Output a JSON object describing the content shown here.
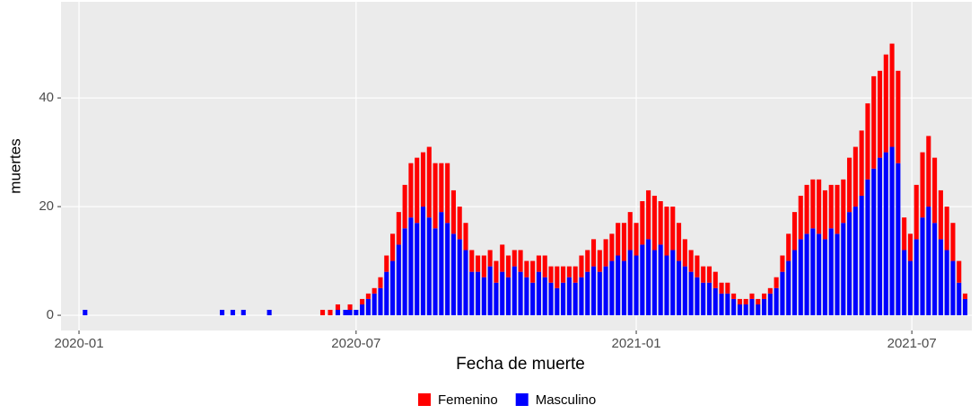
{
  "chart_data": {
    "type": "stacked_bar",
    "x_label": "Fecha de muerte",
    "y_label": "muertes",
    "x": [
      4,
      94,
      101,
      108,
      125,
      160,
      165,
      170,
      175,
      178,
      182,
      186,
      190,
      194,
      198,
      202,
      206,
      210,
      214,
      218,
      222,
      226,
      230,
      234,
      238,
      242,
      246,
      250,
      254,
      258,
      262,
      266,
      270,
      274,
      278,
      282,
      286,
      290,
      294,
      298,
      302,
      306,
      310,
      314,
      318,
      322,
      326,
      330,
      334,
      338,
      342,
      346,
      350,
      354,
      358,
      362,
      366,
      370,
      374,
      378,
      382,
      386,
      390,
      394,
      398,
      402,
      406,
      410,
      414,
      418,
      422,
      426,
      430,
      434,
      438,
      442,
      446,
      450,
      454,
      458,
      462,
      466,
      470,
      474,
      478,
      482,
      486,
      490,
      494,
      498,
      502,
      506,
      510,
      514,
      518,
      522,
      526,
      530,
      534,
      538,
      542,
      546,
      550,
      554,
      558,
      562,
      566,
      570,
      574,
      578,
      582
    ],
    "series": [
      {
        "name": "Femenino",
        "color": "#ff0000",
        "values": [
          0,
          0,
          0,
          0,
          0,
          1,
          1,
          1,
          0,
          1,
          0,
          1,
          1,
          1,
          2,
          3,
          5,
          6,
          8,
          10,
          12,
          10,
          13,
          12,
          9,
          11,
          8,
          6,
          5,
          4,
          3,
          4,
          3,
          4,
          5,
          4,
          3,
          4,
          3,
          4,
          3,
          4,
          3,
          4,
          3,
          2,
          3,
          4,
          4,
          5,
          4,
          5,
          5,
          6,
          7,
          7,
          6,
          8,
          9,
          10,
          8,
          9,
          8,
          7,
          5,
          4,
          4,
          3,
          3,
          3,
          2,
          2,
          1,
          1,
          1,
          1,
          1,
          1,
          1,
          2,
          3,
          5,
          7,
          8,
          9,
          9,
          10,
          9,
          8,
          9,
          8,
          10,
          11,
          12,
          14,
          17,
          16,
          18,
          19,
          17,
          6,
          5,
          10,
          12,
          13,
          12,
          9,
          8,
          7,
          4,
          1
        ]
      },
      {
        "name": "Masculino",
        "color": "#0000ff",
        "values": [
          1,
          1,
          1,
          1,
          1,
          0,
          0,
          1,
          1,
          1,
          1,
          2,
          3,
          4,
          5,
          8,
          10,
          13,
          16,
          18,
          17,
          20,
          18,
          16,
          19,
          17,
          15,
          14,
          12,
          8,
          8,
          7,
          9,
          6,
          8,
          7,
          9,
          8,
          7,
          6,
          8,
          7,
          6,
          5,
          6,
          7,
          6,
          7,
          8,
          9,
          8,
          9,
          10,
          11,
          10,
          12,
          11,
          13,
          14,
          12,
          13,
          11,
          12,
          10,
          9,
          8,
          7,
          6,
          6,
          5,
          4,
          4,
          3,
          2,
          2,
          3,
          2,
          3,
          4,
          5,
          8,
          10,
          12,
          14,
          15,
          16,
          15,
          14,
          16,
          15,
          17,
          19,
          20,
          22,
          25,
          27,
          29,
          30,
          31,
          28,
          12,
          10,
          14,
          18,
          20,
          17,
          14,
          12,
          10,
          6,
          3
        ]
      }
    ],
    "xlim": [
      -11.8,
      586.4
    ],
    "xticks": [
      {
        "value": 0,
        "label": "2020-01"
      },
      {
        "value": 182,
        "label": "2020-07"
      },
      {
        "value": 366,
        "label": "2021-01"
      },
      {
        "value": 547,
        "label": "2021-07"
      }
    ],
    "ylim": [
      -2.8,
      57.7
    ],
    "yticks": [
      0,
      20,
      40
    ],
    "grid": true,
    "legend": "bottom"
  }
}
